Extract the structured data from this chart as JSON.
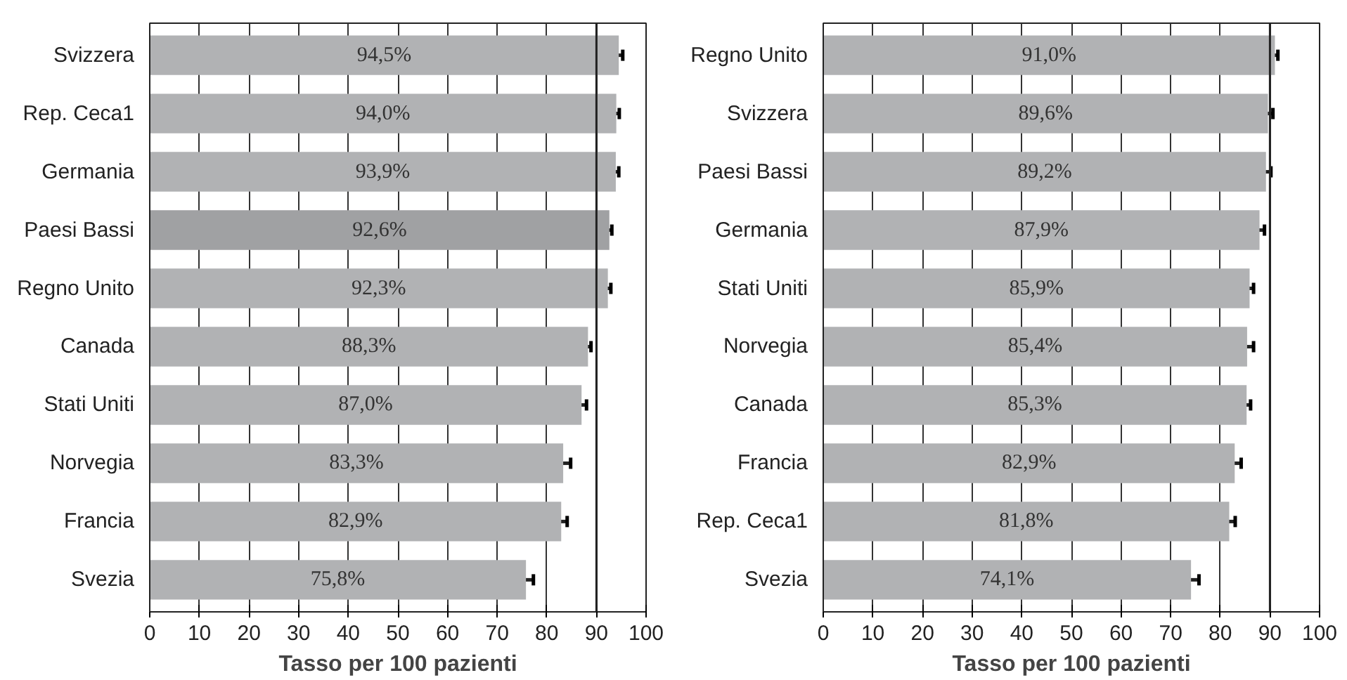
{
  "chart_data": [
    {
      "type": "bar",
      "orientation": "horizontal",
      "xlabel": "Tasso per 100 pazienti",
      "categories": [
        "Svizzera",
        "Rep. Ceca1",
        "Germania",
        "Paesi Bassi",
        "Regno Unito",
        "Canada",
        "Stati Uniti",
        "Norvegia",
        "Francia",
        "Svezia"
      ],
      "values": [
        94.5,
        94.0,
        93.9,
        92.6,
        92.3,
        88.3,
        87.0,
        83.3,
        82.9,
        75.8
      ],
      "value_labels": [
        "94,5%",
        "94,0%",
        "93,9%",
        "92,6%",
        "92,3%",
        "88,3%",
        "87,0%",
        "83,3%",
        "82,9%",
        "75,8%"
      ],
      "errors": [
        0.8,
        0.6,
        0.6,
        0.5,
        0.6,
        0.6,
        1.0,
        1.5,
        1.2,
        1.5
      ],
      "colors": [
        "#b1b2b4",
        "#b1b2b4",
        "#b1b2b4",
        "#a0a1a3",
        "#b1b2b4",
        "#b1b2b4",
        "#b1b2b4",
        "#b1b2b4",
        "#b1b2b4",
        "#b1b2b4"
      ],
      "xlim": [
        0,
        100
      ],
      "xticks": [
        0,
        10,
        20,
        30,
        40,
        50,
        60,
        70,
        80,
        90,
        100
      ],
      "grid": "x",
      "ref_lines": [
        {
          "axis": "x",
          "value": 90,
          "color": "#222222"
        }
      ]
    },
    {
      "type": "bar",
      "orientation": "horizontal",
      "xlabel": "Tasso per 100 pazienti",
      "categories": [
        "Regno Unito",
        "Svizzera",
        "Paesi Bassi",
        "Germania",
        "Stati Uniti",
        "Norvegia",
        "Canada",
        "Francia",
        "Rep. Ceca1",
        "Svezia"
      ],
      "values": [
        91.0,
        89.6,
        89.2,
        87.9,
        85.9,
        85.4,
        85.3,
        82.9,
        81.8,
        74.1
      ],
      "value_labels": [
        "91,0%",
        "89,6%",
        "89,2%",
        "87,9%",
        "85,9%",
        "85,4%",
        "85,3%",
        "82,9%",
        "81,8%",
        "74,1%"
      ],
      "errors": [
        0.6,
        1.0,
        1.0,
        1.0,
        0.8,
        1.3,
        0.8,
        1.3,
        1.2,
        1.6
      ],
      "colors": [
        "#b1b2b4",
        "#b1b2b4",
        "#b1b2b4",
        "#b1b2b4",
        "#b1b2b4",
        "#b1b2b4",
        "#b1b2b4",
        "#b1b2b4",
        "#b1b2b4",
        "#b1b2b4"
      ],
      "xlim": [
        0,
        100
      ],
      "xticks": [
        0,
        10,
        20,
        30,
        40,
        50,
        60,
        70,
        80,
        90,
        100
      ],
      "grid": "x",
      "ref_lines": [
        {
          "axis": "x",
          "value": 90,
          "color": "#222222"
        }
      ]
    }
  ]
}
